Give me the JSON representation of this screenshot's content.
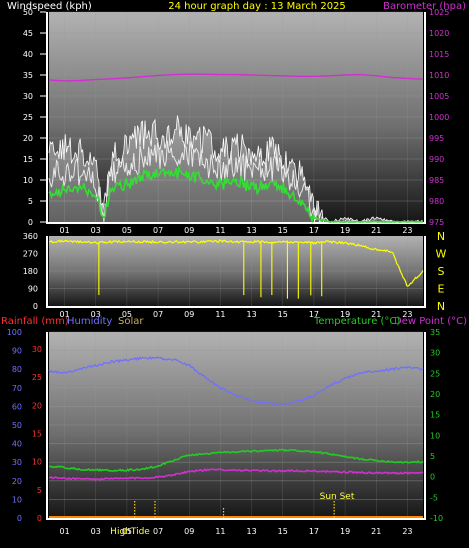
{
  "header": {
    "left_label": "Windspeed (kph)",
    "center_title": "24 hour graph day : 13 March 2025",
    "right_label": "Barometer (hpa)"
  },
  "colors": {
    "wind": "#ffffff",
    "gust_fill": "#f0f0f0",
    "avg_wind": "#33dd33",
    "barometer": "#d030d0",
    "direction": "#ffff00",
    "rain": "#ff3030",
    "humidity": "#7070ff",
    "solar": "#c8b060",
    "temperature": "#22cc22",
    "dewpoint": "#d030d0",
    "tick_yellow": "#ffcc00",
    "sun_label": "#ffff40"
  },
  "panel1": {
    "left_ticks": [
      "0",
      "5",
      "10",
      "15",
      "20",
      "25",
      "30",
      "35",
      "40",
      "45",
      "50"
    ],
    "right_ticks": [
      "975",
      "980",
      "985",
      "990",
      "995",
      "1000",
      "1005",
      "1010",
      "1015",
      "1020",
      "1025"
    ],
    "x_ticks": [
      "01",
      "03",
      "05",
      "07",
      "09",
      "11",
      "13",
      "15",
      "17",
      "19",
      "21",
      "23"
    ]
  },
  "panel2": {
    "left_ticks": [
      "0",
      "90",
      "180",
      "270",
      "360"
    ],
    "compass": [
      "N",
      "W",
      "S",
      "E",
      "N"
    ],
    "x_ticks": [
      "01",
      "03",
      "05",
      "07",
      "09",
      "11",
      "13",
      "15",
      "17",
      "19",
      "21",
      "23"
    ]
  },
  "panel3": {
    "labels": {
      "rainfall": "Rainfall (mm)",
      "humidity": "Humidity",
      "solar": "Solar",
      "temperature": "Temperature (°C)",
      "dewpoint": "Dew Point (°C)"
    },
    "hum_ticks": [
      "0",
      "10",
      "20",
      "30",
      "40",
      "50",
      "60",
      "70",
      "80",
      "90",
      "100"
    ],
    "rain_ticks": [
      "0",
      "5",
      "10",
      "15",
      "20",
      "25",
      "30"
    ],
    "temp_ticks": [
      "-10",
      "-5",
      "0",
      "5",
      "10",
      "15",
      "20",
      "25",
      "30",
      "35"
    ],
    "x_ticks": [
      "01",
      "03",
      "05",
      "07",
      "09",
      "11",
      "13",
      "15",
      "17",
      "19",
      "21",
      "23"
    ],
    "annotations": {
      "sun_set": "Sun Set",
      "high_tide": "HighTide"
    }
  },
  "chart_data": [
    {
      "type": "line",
      "title": "24 hour graph day : 13 March 2025",
      "xlabel": "",
      "ylabel": "Windspeed (kph)",
      "x": [
        0,
        1,
        2,
        3,
        3.5,
        4,
        5,
        6,
        7,
        8,
        9,
        10,
        11,
        12,
        13,
        14,
        15,
        16,
        16.5,
        17,
        18,
        19,
        20,
        21,
        22,
        23,
        24
      ],
      "ylim": [
        0,
        50
      ],
      "y2label": "Barometer (hpa)",
      "y2lim": [
        975,
        1025
      ],
      "series": [
        {
          "name": "Windspeed",
          "values": [
            11,
            12,
            12,
            10,
            2,
            11,
            13,
            15,
            16,
            17,
            16,
            14,
            13,
            14,
            12,
            13,
            12,
            9,
            7,
            2,
            0,
            0,
            0,
            0,
            0,
            0,
            0
          ]
        },
        {
          "name": "Gust",
          "values": [
            15,
            17,
            16,
            14,
            3,
            15,
            18,
            20,
            21,
            22,
            21,
            19,
            17,
            18,
            16,
            17,
            16,
            12,
            10,
            3,
            0,
            1,
            0,
            1,
            0,
            0,
            0
          ]
        },
        {
          "name": "Average",
          "values": [
            7,
            8,
            8,
            7,
            1,
            8,
            9,
            11,
            12,
            12,
            11,
            10,
            9,
            10,
            8,
            9,
            8,
            5,
            4,
            1,
            0,
            0,
            0,
            0,
            0,
            0,
            0
          ]
        },
        {
          "name": "Barometer",
          "axis": "right",
          "values": [
            1008.8,
            1008.6,
            1008.7,
            1008.9,
            1009,
            1009.1,
            1009.3,
            1009.6,
            1009.9,
            1010.1,
            1010.2,
            1010.2,
            1010.1,
            1010.1,
            1010,
            1009.9,
            1009.8,
            1009.7,
            1009.7,
            1009.7,
            1009.8,
            1010,
            1010.1,
            1009.8,
            1009.4,
            1009.2,
            1009
          ]
        }
      ]
    },
    {
      "type": "line",
      "xlabel": "",
      "ylabel": "",
      "x": [
        0,
        1,
        2,
        3,
        4,
        5,
        6,
        7,
        8,
        9,
        10,
        11,
        12,
        13,
        14,
        15,
        16,
        17,
        18,
        19,
        20,
        21,
        22,
        23,
        24
      ],
      "ylim": [
        0,
        360
      ],
      "series": [
        {
          "name": "Wind Direction",
          "values": [
            330,
            335,
            330,
            325,
            330,
            330,
            330,
            330,
            330,
            330,
            330,
            335,
            330,
            330,
            330,
            330,
            330,
            325,
            330,
            325,
            310,
            290,
            280,
            100,
            180
          ]
        }
      ]
    },
    {
      "type": "line",
      "xlabel": "",
      "ylabel": "",
      "x": [
        0,
        1,
        2,
        3,
        4,
        5,
        6,
        7,
        8,
        9,
        10,
        11,
        12,
        13,
        14,
        15,
        16,
        17,
        18,
        19,
        20,
        21,
        22,
        23,
        24
      ],
      "y_left_label": "Humidity / Rainfall (mm)",
      "ylim": [
        0,
        100
      ],
      "y2label": "Temperature (°C)",
      "y2lim": [
        -10,
        35
      ],
      "series": [
        {
          "name": "Humidity",
          "values": [
            79,
            78,
            80,
            82,
            84,
            85,
            86,
            86,
            85,
            82,
            76,
            70,
            66,
            63,
            62,
            61,
            63,
            66,
            71,
            75,
            78,
            79,
            80,
            81,
            80
          ]
        },
        {
          "name": "Temperature",
          "axis": "right",
          "values": [
            2.5,
            2.2,
            1.8,
            1.6,
            1.5,
            1.6,
            1.8,
            2.6,
            4,
            5.2,
            5.5,
            5.8,
            6,
            6.1,
            6.3,
            6.4,
            6.3,
            6,
            5.5,
            4.8,
            4.3,
            3.9,
            3.6,
            3.5,
            3.6
          ]
        },
        {
          "name": "Dew Point",
          "axis": "right",
          "values": [
            -0.2,
            -0.4,
            -0.5,
            -0.6,
            -0.5,
            -0.4,
            -0.3,
            -0.1,
            0.5,
            1.3,
            1.6,
            1.7,
            1.6,
            1.5,
            1.4,
            1.4,
            1.4,
            1.4,
            1.2,
            1.1,
            1,
            0.9,
            0.9,
            0.9,
            0.9
          ]
        },
        {
          "name": "Rainfall",
          "values": [
            0,
            0,
            0,
            0,
            0,
            0,
            0,
            0,
            0,
            0,
            0,
            0,
            0,
            0,
            0,
            0,
            0,
            0,
            0,
            0,
            0,
            0,
            0,
            0,
            0
          ]
        },
        {
          "name": "Solar",
          "values": [
            0,
            0,
            0,
            0,
            0,
            0,
            0,
            0,
            0,
            0,
            0,
            0,
            0,
            0,
            0,
            0,
            0,
            0,
            0,
            0,
            0,
            0,
            0,
            0,
            0
          ]
        }
      ]
    }
  ]
}
